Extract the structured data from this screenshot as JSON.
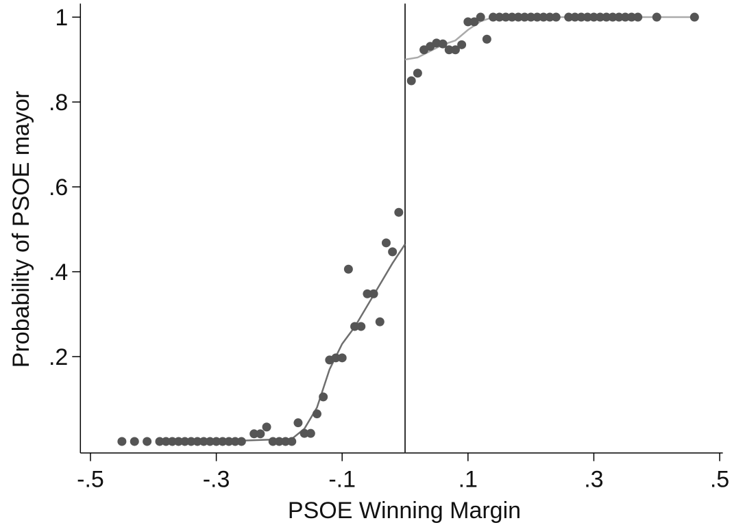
{
  "chart_data": {
    "type": "scatter",
    "x_label": "PSOE Winning Margin",
    "y_label": "Probability of PSOE mayor",
    "xlim": [
      -0.516,
      0.505
    ],
    "ylim": [
      -0.027,
      1.032
    ],
    "xticks": [
      {
        "value": -0.5,
        "label": "-.5"
      },
      {
        "value": -0.3,
        "label": "-.3"
      },
      {
        "value": -0.1,
        "label": "-.1"
      },
      {
        "value": 0.1,
        "label": ".1"
      },
      {
        "value": 0.3,
        "label": ".3"
      },
      {
        "value": 0.5,
        "label": ".5"
      }
    ],
    "yticks": [
      {
        "value": 0.2,
        "label": ".2"
      },
      {
        "value": 0.4,
        "label": ".4"
      },
      {
        "value": 0.6,
        "label": ".6"
      },
      {
        "value": 0.8,
        "label": ".8"
      },
      1
    ],
    "xline": 0,
    "grid": false,
    "series": [
      {
        "type": "scatter",
        "color": "#555555",
        "x": [
          -0.45,
          -0.43,
          -0.41,
          -0.39,
          -0.38,
          -0.37,
          -0.36,
          -0.35,
          -0.34,
          -0.33,
          -0.32,
          -0.31,
          -0.3,
          -0.29,
          -0.28,
          -0.27,
          -0.26,
          -0.24,
          -0.23,
          -0.22,
          -0.21,
          -0.2,
          -0.19,
          -0.18,
          -0.17,
          -0.16,
          -0.15,
          -0.14,
          -0.13,
          -0.12,
          -0.11,
          -0.1,
          -0.09,
          -0.08,
          -0.07,
          -0.06,
          -0.05,
          -0.04,
          -0.03,
          -0.02,
          -0.01,
          0.01,
          0.02,
          0.03,
          0.04,
          0.05,
          0.06,
          0.07,
          0.08,
          0.09,
          0.1,
          0.11,
          0.12,
          0.13,
          0.14,
          0.15,
          0.16,
          0.17,
          0.18,
          0.19,
          0.2,
          0.21,
          0.22,
          0.23,
          0.24,
          0.26,
          0.27,
          0.28,
          0.29,
          0.3,
          0.31,
          0.32,
          0.33,
          0.34,
          0.35,
          0.36,
          0.37,
          0.4,
          0.46
        ],
        "values": [
          0,
          0,
          0,
          0,
          0,
          0,
          0,
          0,
          0,
          0,
          0,
          0,
          0,
          0,
          0,
          0,
          0,
          0.018,
          0.018,
          0.034,
          0,
          0,
          0,
          0,
          0.044,
          0.019,
          0.019,
          0.065,
          0.105,
          0.192,
          0.197,
          0.197,
          0.406,
          0.271,
          0.271,
          0.348,
          0.348,
          0.282,
          0.468,
          0.447,
          0.54,
          0.85,
          0.868,
          0.923,
          0.931,
          0.939,
          0.937,
          0.923,
          0.923,
          0.935,
          0.989,
          0.989,
          1,
          0.948,
          1,
          1,
          1,
          1,
          1,
          1,
          1,
          1,
          1,
          1,
          1,
          1,
          1,
          1,
          1,
          1,
          1,
          1,
          1,
          1,
          1,
          1,
          1,
          1,
          1
        ]
      },
      {
        "type": "line",
        "color": "#6e6e6e",
        "x": [
          -0.26,
          -0.24,
          -0.22,
          -0.2,
          -0.18,
          -0.16,
          -0.14,
          -0.12,
          -0.1,
          -0.08,
          -0.06,
          -0.04,
          -0.02,
          0
        ],
        "values": [
          0.002,
          0.003,
          0.004,
          0.005,
          0.006,
          0.03,
          0.08,
          0.17,
          0.23,
          0.27,
          0.32,
          0.37,
          0.42,
          0.465
        ]
      },
      {
        "type": "line",
        "color": "#aaaaaa",
        "x": [
          0,
          0.02,
          0.04,
          0.06,
          0.08,
          0.1,
          0.12,
          0.14,
          0.3,
          0.46
        ],
        "values": [
          0.9,
          0.905,
          0.92,
          0.935,
          0.945,
          0.97,
          0.99,
          1,
          1,
          1
        ]
      }
    ]
  }
}
